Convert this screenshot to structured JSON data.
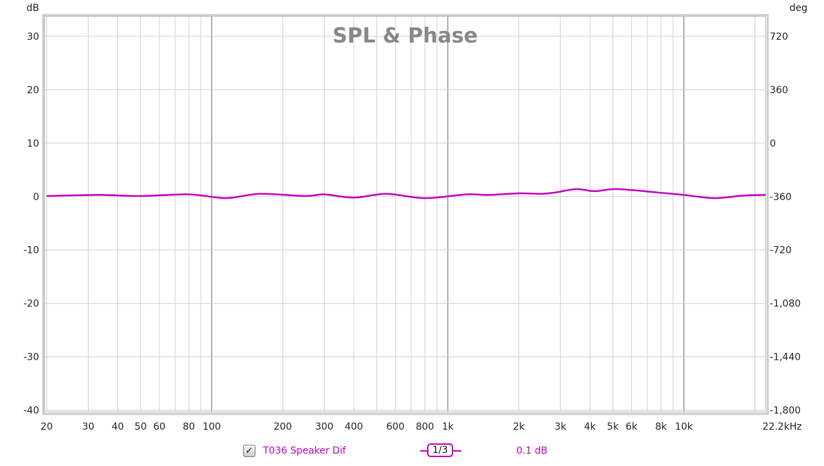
{
  "chart_data": {
    "type": "line",
    "title": "SPL & Phase",
    "ylabel": "dB",
    "y2label": "deg",
    "xunit": "kHz",
    "xscale": "log",
    "xlim": [
      19.6,
      22200
    ],
    "ylim": [
      -40.3,
      33.7
    ],
    "y_ticks": [
      30,
      20,
      10,
      0,
      -10,
      -20,
      -30,
      -40
    ],
    "y_tick_labels": [
      "30",
      "20",
      "10",
      "0",
      "-10",
      "-20",
      "-30",
      "-40"
    ],
    "y2_tick_labels": [
      "720",
      "360",
      "0",
      "-360",
      "-720",
      "-1,080",
      "-1,440",
      "-1,800"
    ],
    "x_ticks": [
      20,
      30,
      40,
      50,
      60,
      80,
      100,
      200,
      300,
      400,
      600,
      800,
      1000,
      2000,
      3000,
      4000,
      5000,
      6000,
      8000,
      10000,
      22200
    ],
    "x_tick_labels": [
      "20",
      "30",
      "40",
      "50",
      "60",
      "80",
      "100",
      "200",
      "300",
      "400",
      "600",
      "800",
      "1k",
      "2k",
      "3k",
      "4k",
      "5k",
      "6k",
      "8k",
      "10k",
      "22.2kHz"
    ],
    "grid": true,
    "series": [
      {
        "name": "T036 Speaker Dif",
        "color": "#c000c0",
        "x": [
          20,
          33,
          50,
          80,
          115,
          160,
          250,
          300,
          400,
          550,
          800,
          1200,
          1500,
          2000,
          2500,
          2900,
          3500,
          4200,
          5200,
          8000,
          10000,
          13500,
          18000,
          22200
        ],
        "y": [
          0.1,
          0.3,
          0.1,
          0.4,
          -0.3,
          0.5,
          0.1,
          0.4,
          -0.2,
          0.5,
          -0.3,
          0.4,
          0.3,
          0.6,
          0.5,
          0.8,
          1.4,
          1.0,
          1.4,
          0.7,
          0.3,
          -0.3,
          0.2,
          0.3
        ]
      }
    ]
  },
  "legend": {
    "checked": true,
    "check_glyph": "✓",
    "name": "T036 Speaker Dif",
    "smoothing": "1/3",
    "offset": "0.1 dB"
  }
}
